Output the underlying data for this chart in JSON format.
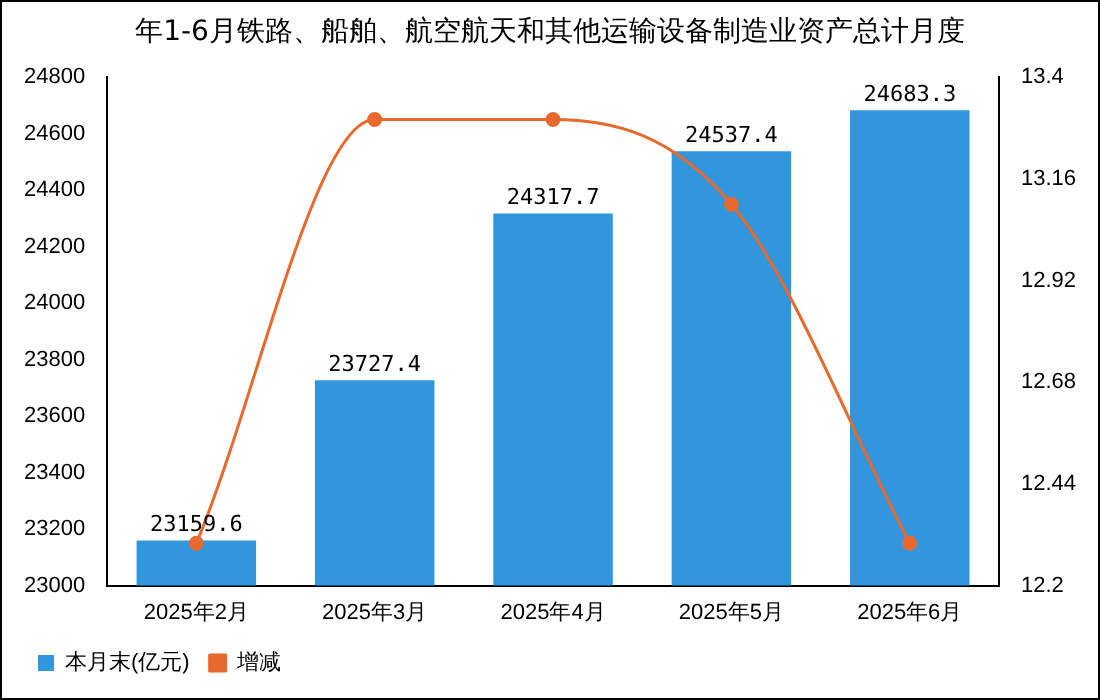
{
  "chart_data": {
    "type": "bar",
    "title": "年1-6月铁路、船舶、航空航天和其他运输设备制造业资产总计月度",
    "categories": [
      "2025年2月",
      "2025年3月",
      "2025年4月",
      "2025年5月",
      "2025年6月"
    ],
    "series": [
      {
        "name": "本月末(亿元)",
        "color": "#3196dc",
        "values": [
          23159.6,
          23727.4,
          24317.7,
          24537.4,
          24683.3
        ],
        "value_labels": [
          "23159.6",
          "23727.4",
          "24317.7",
          "24537.4",
          "24683.3"
        ]
      },
      {
        "name": "增减",
        "type": "line",
        "axis": "y2",
        "color": "#e8692d",
        "values": [
          12.3,
          13.3,
          13.3,
          13.1,
          12.3
        ]
      }
    ],
    "ylim": [
      23000,
      24800
    ],
    "yticks": [
      23000,
      23200,
      23400,
      23600,
      23800,
      24000,
      24200,
      24400,
      24600,
      24800
    ],
    "y2lim": [
      12.2,
      13.4
    ],
    "y2ticks": [
      {
        "value": 12.2,
        "label": "12.2"
      },
      {
        "value": 12.44,
        "label": "12.44"
      },
      {
        "value": 12.68,
        "label": "12.68"
      },
      {
        "value": 12.92,
        "label": "12.92"
      },
      {
        "value": 13.16,
        "label": "13.16"
      },
      {
        "value": 13.4,
        "label": "13.4"
      }
    ],
    "legend": "bottom left",
    "grid": false,
    "marker": "circle"
  }
}
